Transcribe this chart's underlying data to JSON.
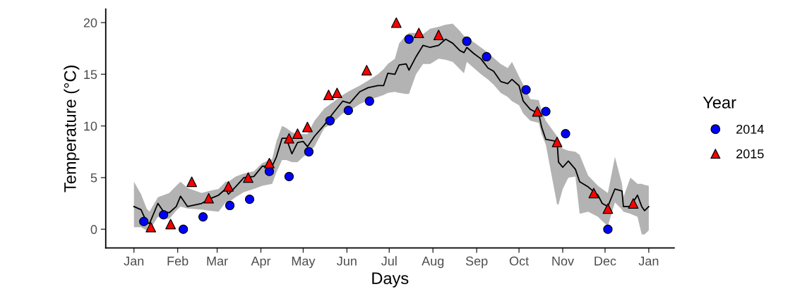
{
  "chart_data": {
    "type": "scatter",
    "xlabel": "Days",
    "ylabel": "Temperature (°C)",
    "legend_title": "Year",
    "legend": "right",
    "grid": false,
    "xlim": [
      "2013-12-12",
      "2015-01-19"
    ],
    "ylim": [
      -1.8,
      21.3
    ],
    "xticks": [
      {
        "value": "2014-01-01",
        "label": "Jan"
      },
      {
        "value": "2014-02-01",
        "label": "Feb"
      },
      {
        "value": "2014-03-01",
        "label": "Mar"
      },
      {
        "value": "2014-04-01",
        "label": "Apr"
      },
      {
        "value": "2014-05-01",
        "label": "May"
      },
      {
        "value": "2014-06-01",
        "label": "Jun"
      },
      {
        "value": "2014-07-01",
        "label": "Jul"
      },
      {
        "value": "2014-08-01",
        "label": "Aug"
      },
      {
        "value": "2014-09-01",
        "label": "Sep"
      },
      {
        "value": "2014-10-01",
        "label": "Oct"
      },
      {
        "value": "2014-11-01",
        "label": "Nov"
      },
      {
        "value": "2014-12-01",
        "label": "Dec"
      },
      {
        "value": "2015-01-01",
        "label": "Jan"
      }
    ],
    "yticks": [
      0,
      5,
      10,
      15,
      20
    ],
    "series": [
      {
        "type": "line",
        "color": "#000000",
        "line_style": "solid",
        "x": [
          "2014-01-01",
          "2014-01-06",
          "2014-01-10",
          "2014-01-12",
          "2014-01-18",
          "2014-01-22",
          "2014-01-26",
          "2014-01-31",
          "2014-02-03",
          "2014-02-08",
          "2014-02-18",
          "2014-02-23",
          "2014-03-02",
          "2014-03-07",
          "2014-03-09",
          "2014-03-14",
          "2014-03-20",
          "2014-03-27",
          "2014-04-02",
          "2014-04-09",
          "2014-04-12",
          "2014-04-16",
          "2014-04-19",
          "2014-04-23",
          "2014-04-27",
          "2014-05-01",
          "2014-05-04",
          "2014-05-09",
          "2014-05-16",
          "2014-05-22",
          "2014-05-29",
          "2014-06-03",
          "2014-06-10",
          "2014-06-16",
          "2014-06-23",
          "2014-06-27",
          "2014-06-30",
          "2014-07-05",
          "2014-07-08",
          "2014-07-13",
          "2014-07-15",
          "2014-07-20",
          "2014-07-25",
          "2014-07-30",
          "2014-08-05",
          "2014-08-10",
          "2014-08-15",
          "2014-08-20",
          "2014-08-23",
          "2014-08-25",
          "2014-08-30",
          "2014-09-04",
          "2014-09-09",
          "2014-09-13",
          "2014-09-18",
          "2014-09-23",
          "2014-09-26",
          "2014-10-01",
          "2014-10-04",
          "2014-10-09",
          "2014-10-15",
          "2014-10-17",
          "2014-10-20",
          "2014-10-28",
          "2014-10-29",
          "2014-11-01",
          "2014-11-05",
          "2014-11-10",
          "2014-11-13",
          "2014-11-19",
          "2014-11-26",
          "2014-11-29",
          "2014-12-03",
          "2014-12-08",
          "2014-12-13",
          "2014-12-14",
          "2014-12-19",
          "2014-12-24",
          "2014-12-27",
          "2014-12-29",
          "2015-01-01"
        ],
        "values": [
          2.2,
          1.9,
          0.7,
          0.55,
          2.5,
          1.7,
          1.6,
          2.2,
          3.2,
          2.2,
          2.5,
          2.9,
          3.3,
          3.9,
          3.4,
          4.1,
          5.0,
          5.1,
          6.1,
          6.1,
          7.0,
          8.8,
          8.8,
          7.3,
          8.4,
          8.5,
          8.0,
          9.0,
          10.1,
          11.2,
          12.4,
          12.2,
          13.3,
          13.7,
          13.9,
          13.9,
          15.1,
          15.0,
          15.9,
          16.0,
          15.4,
          16.7,
          17.8,
          17.6,
          17.8,
          18.4,
          18.0,
          17.3,
          17.1,
          17.6,
          17.0,
          16.5,
          15.6,
          15.3,
          14.3,
          14.1,
          14.5,
          13.9,
          12.4,
          11.6,
          11.2,
          9.9,
          8.7,
          8.5,
          6.5,
          6.0,
          6.6,
          5.8,
          4.6,
          4.1,
          3.3,
          2.5,
          2.2,
          3.9,
          3.7,
          2.2,
          2.2,
          3.3,
          2.2,
          1.8,
          2.2
        ],
        "lower": [
          0.2,
          0.2,
          -0.1,
          -0.1,
          1.2,
          1.0,
          1.0,
          1.8,
          2.2,
          2.0,
          1.9,
          1.8,
          1.7,
          2.6,
          2.6,
          3.1,
          3.6,
          3.9,
          4.2,
          4.4,
          5.5,
          6.7,
          6.7,
          6.5,
          6.5,
          7.0,
          7.3,
          8.0,
          9.8,
          10.3,
          11.2,
          11.5,
          12.1,
          12.5,
          12.8,
          13.0,
          13.2,
          13.3,
          13.2,
          13.1,
          13.1,
          15.0,
          16.0,
          16.0,
          16.5,
          16.4,
          16.2,
          15.5,
          15.1,
          16.2,
          15.6,
          15.0,
          14.5,
          14.0,
          13.2,
          12.8,
          12.4,
          12.0,
          11.2,
          10.5,
          10.3,
          9.2,
          8.2,
          2.4,
          2.4,
          3.9,
          5.0,
          5.1,
          1.5,
          1.7,
          1.2,
          0.8,
          0.3,
          2.6,
          1.9,
          1.7,
          1.5,
          1.2,
          -0.5,
          -0.5,
          -0.1
        ],
        "upper": [
          4.6,
          3.4,
          2.0,
          1.7,
          3.1,
          3.3,
          3.5,
          4.2,
          4.6,
          4.0,
          3.5,
          3.7,
          3.9,
          4.6,
          4.6,
          5.1,
          5.4,
          5.6,
          6.4,
          6.8,
          8.5,
          10.0,
          9.8,
          9.4,
          9.2,
          9.2,
          9.2,
          10.5,
          11.7,
          12.3,
          13.0,
          13.4,
          13.9,
          14.4,
          15.0,
          15.5,
          16.0,
          16.5,
          18.0,
          18.8,
          19.0,
          19.0,
          18.9,
          19.4,
          19.6,
          19.8,
          19.9,
          19.2,
          18.7,
          18.6,
          18.1,
          17.6,
          17.1,
          16.6,
          16.0,
          15.6,
          16.2,
          14.8,
          14.0,
          12.6,
          12.5,
          11.5,
          10.5,
          9.0,
          8.3,
          7.8,
          7.6,
          7.5,
          7.2,
          5.2,
          4.2,
          3.9,
          3.5,
          7.0,
          4.4,
          3.1,
          5.0,
          4.4,
          4.4,
          4.3,
          4.2
        ]
      },
      {
        "name": "2014",
        "color": "#0000ff",
        "marker": "circle",
        "x": [
          "2014-01-08",
          "2014-01-22",
          "2014-02-05",
          "2014-02-19",
          "2014-03-10",
          "2014-03-24",
          "2014-04-07",
          "2014-04-21",
          "2014-05-05",
          "2014-05-20",
          "2014-06-02",
          "2014-06-17",
          "2014-07-15",
          "2014-08-25",
          "2014-09-08",
          "2014-10-06",
          "2014-10-20",
          "2014-11-03",
          "2014-12-03"
        ],
        "values": [
          0.75,
          1.4,
          0.0,
          1.2,
          2.3,
          2.9,
          5.6,
          5.1,
          7.5,
          10.5,
          11.5,
          12.4,
          18.4,
          18.2,
          16.7,
          13.5,
          11.4,
          9.25,
          0.0
        ]
      },
      {
        "name": "2015",
        "color": "#ff0000",
        "marker": "triangle",
        "x": [
          "2014-01-13",
          "2014-01-27",
          "2014-02-11",
          "2014-02-23",
          "2014-03-09",
          "2014-03-23",
          "2014-04-07",
          "2014-04-21",
          "2014-04-27",
          "2014-05-04",
          "2014-05-19",
          "2014-05-25",
          "2014-06-15",
          "2014-07-06",
          "2014-07-22",
          "2014-08-05",
          "2014-10-14",
          "2014-10-28",
          "2014-11-23",
          "2014-12-03",
          "2014-12-21"
        ],
        "values": [
          0.2,
          0.5,
          4.6,
          3.0,
          4.15,
          5.0,
          6.4,
          8.8,
          9.25,
          9.9,
          13.0,
          13.2,
          15.4,
          20.0,
          19.0,
          18.8,
          11.4,
          8.45,
          3.5,
          2.0,
          2.5
        ]
      }
    ]
  }
}
